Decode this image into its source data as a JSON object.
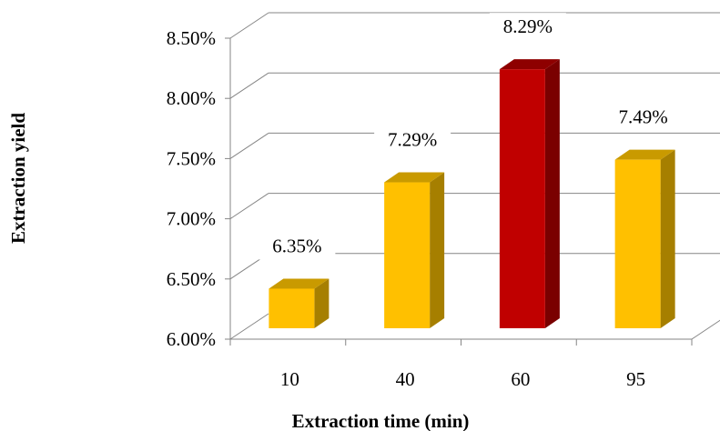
{
  "chart_data": {
    "type": "bar",
    "categories": [
      "10",
      "40",
      "60",
      "95"
    ],
    "values": [
      6.35,
      7.29,
      8.29,
      7.49
    ],
    "data_labels": [
      "6.35%",
      "7.29%",
      "8.29%",
      "7.49%"
    ],
    "ylim": [
      6.0,
      8.5
    ],
    "yticks": [
      6.0,
      6.5,
      7.0,
      7.5,
      8.0,
      8.5
    ],
    "ytick_labels": [
      "6.00%",
      "6.50%",
      "7.00%",
      "7.50%",
      "8.00%",
      "8.50%"
    ],
    "xlabel": "Extraction time (min)",
    "ylabel": "Extraction yield",
    "grid": true,
    "style": "3d-column",
    "colors": {
      "default_front": "#FFC000",
      "default_top": "#C99A00",
      "default_side": "#A67F00",
      "highlight_front": "#C00000",
      "highlight_top": "#8E0000",
      "highlight_side": "#7A0000",
      "highlight_index": 2,
      "grid": "#868686",
      "label_bg": "#ffffff"
    }
  }
}
